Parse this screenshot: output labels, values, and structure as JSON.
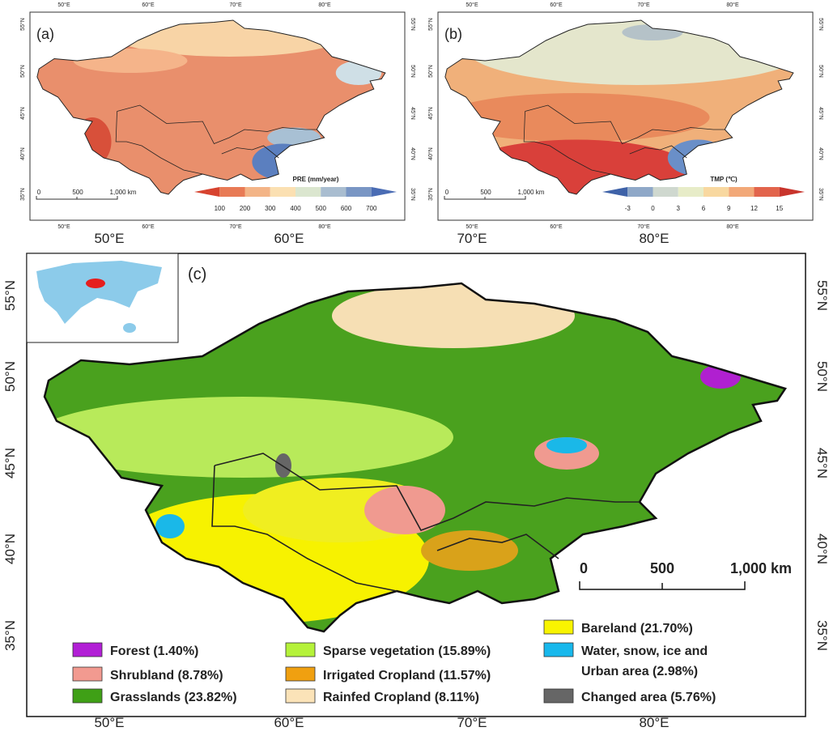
{
  "panels": [
    {
      "label": "(a)",
      "legend_title": "PRE (mm/year)",
      "legend_ticks": [
        100,
        200,
        300,
        400,
        500,
        600,
        700
      ],
      "legend_colors": [
        "#d7432f",
        "#e87a55",
        "#f3b487",
        "#fbe0b2",
        "#dbe6cf",
        "#a9bdd0",
        "#7996c4",
        "#4a6cb4"
      ],
      "scale": [
        "0",
        "500",
        "1,000 km"
      ]
    },
    {
      "label": "(b)",
      "legend_title": "TMP (℃)",
      "legend_ticks": [
        -3,
        0,
        3,
        6,
        9,
        12,
        15
      ],
      "legend_colors": [
        "#3e62a8",
        "#8fa8c8",
        "#cfd8cf",
        "#e7ecc8",
        "#f8d8a0",
        "#f2a878",
        "#e2644c",
        "#c8342c"
      ],
      "scale": [
        "0",
        "500",
        "1,000 km"
      ]
    }
  ],
  "lon_labels": [
    "50°E",
    "60°E",
    "70°E",
    "80°E"
  ],
  "lat_labels": [
    "55°N",
    "50°N",
    "45°N",
    "40°N",
    "35°N"
  ],
  "main": {
    "label": "(c)",
    "scale": [
      "0",
      "500",
      "1,000 km"
    ],
    "legend": [
      {
        "lines": [
          "Forest (1.40%)"
        ],
        "color": "#b21fd6"
      },
      {
        "lines": [
          "Shrubland (8.78%)"
        ],
        "color": "#f29a90"
      },
      {
        "lines": [
          "Grasslands (23.82%)"
        ],
        "color": "#3fa016"
      },
      {
        "lines": [
          "Sparse vegetation (15.89%)"
        ],
        "color": "#b5f23a"
      },
      {
        "lines": [
          "Irrigated Cropland (11.57%)"
        ],
        "color": "#f0a010"
      },
      {
        "lines": [
          "Rainfed Cropland (8.11%)"
        ],
        "color": "#fbe3b8"
      },
      {
        "lines": [
          "Bareland (21.70%)"
        ],
        "color": "#f8f400"
      },
      {
        "lines": [
          "Water, snow, ice and",
          "Urban area (2.98%)"
        ],
        "color": "#18b8ec"
      },
      {
        "lines": [
          "Changed area (5.76%)"
        ],
        "color": "#666666"
      }
    ]
  }
}
